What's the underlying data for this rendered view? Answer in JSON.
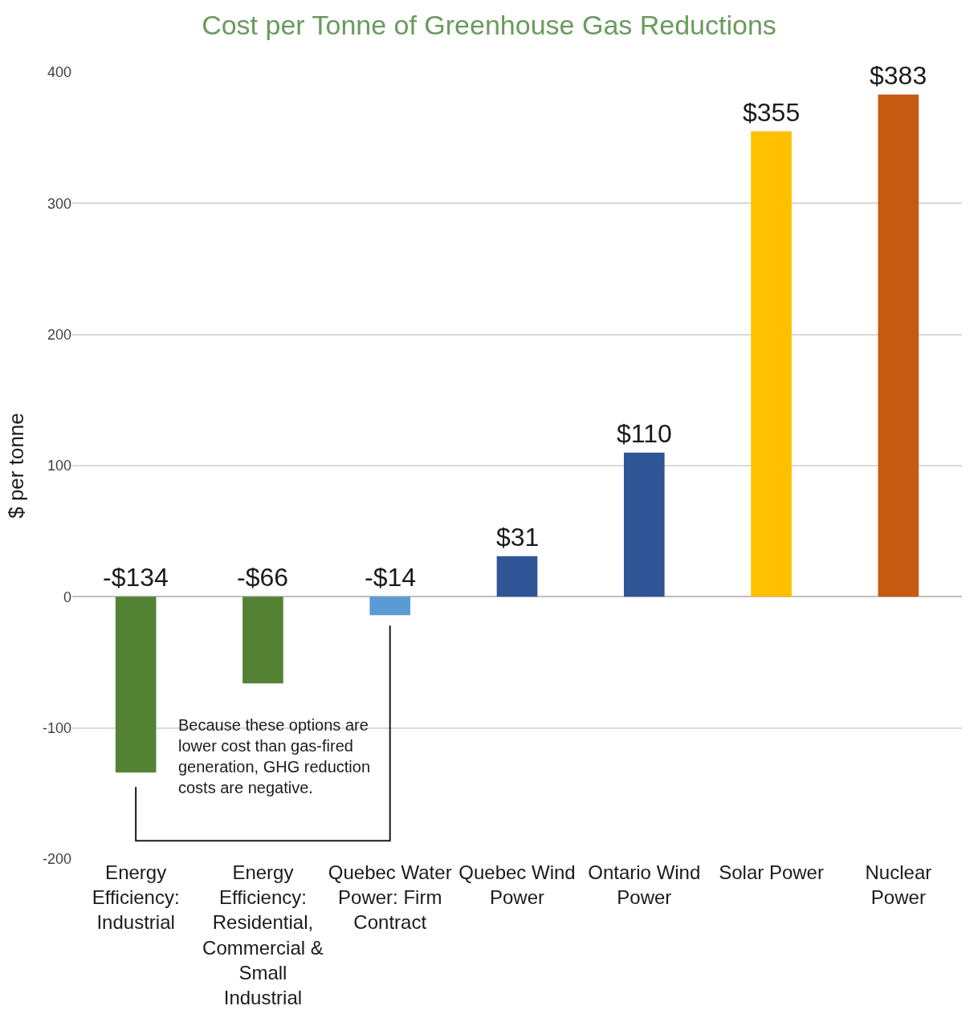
{
  "chart_data": {
    "type": "bar",
    "title": "Cost per Tonne of Greenhouse Gas Reductions",
    "ylabel": "$ per tonne",
    "categories": [
      "Energy Efficiency: Industrial",
      "Energy Efficiency: Residential, Commercial & Small Industrial",
      "Quebec Water Power: Firm Contract",
      "Quebec Wind Power",
      "Ontario Wind Power",
      "Solar Power",
      "Nuclear Power"
    ],
    "values": [
      -134,
      -66,
      -14,
      31,
      110,
      355,
      383
    ],
    "colors": [
      "#548235",
      "#548235",
      "#5b9bd5",
      "#2f5597",
      "#2f5597",
      "#ffc000",
      "#c55a11"
    ],
    "value_labels": [
      "-$134",
      "-$66",
      "-$14",
      "$31",
      "$110",
      "$355",
      "$383"
    ],
    "ylim": [
      -200,
      400
    ],
    "yticks": [
      -200,
      -100,
      0,
      100,
      200,
      300,
      400
    ],
    "grid": "y",
    "legend": false,
    "annotations": [
      "Because these options are lower cost than gas-fired generation, GHG reduction costs are negative."
    ]
  }
}
